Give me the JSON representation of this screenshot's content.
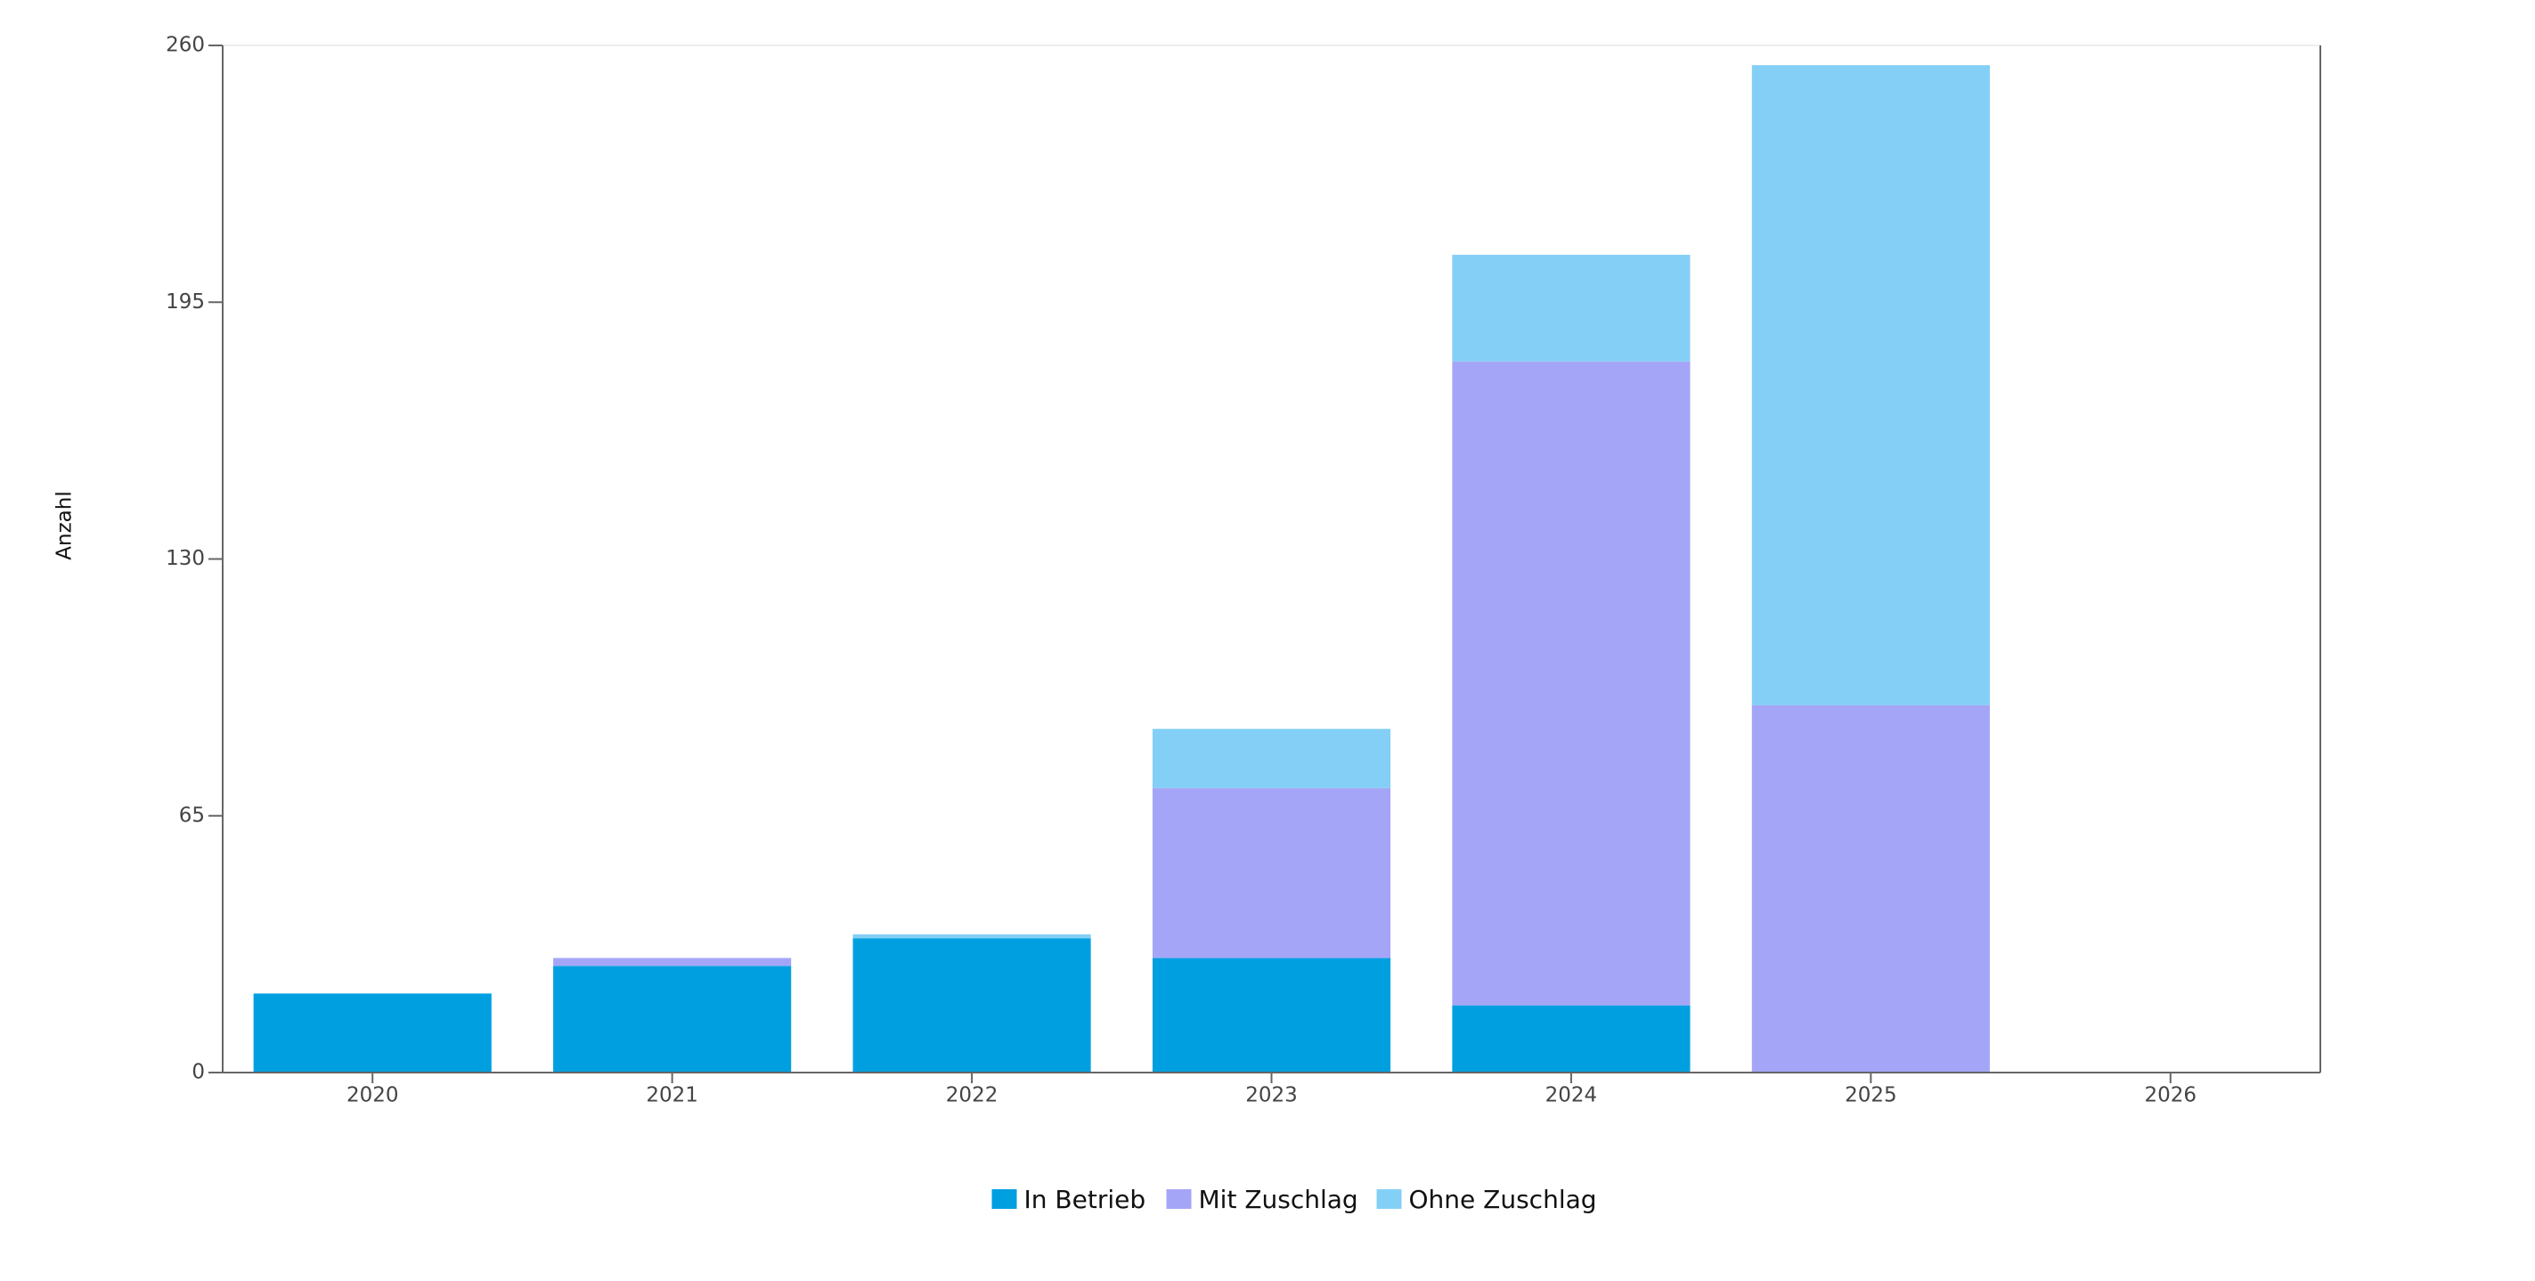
{
  "chart_data": {
    "type": "stacked_bar",
    "y_label": "Anzahl",
    "categories": [
      "2020",
      "2021",
      "2022",
      "2023",
      "2024",
      "2025",
      "2026"
    ],
    "series": [
      {
        "name": "In Betrieb",
        "color": "#009fe0",
        "values": [
          20,
          27,
          34,
          29,
          17,
          0,
          0
        ]
      },
      {
        "name": "Mit Zuschlag",
        "color": "#a5a5f7",
        "values": [
          0,
          2,
          0,
          43,
          163,
          93,
          0
        ]
      },
      {
        "name": "Ohne Zuschlag",
        "color": "#84cff6",
        "values": [
          0,
          0,
          1,
          15,
          27,
          162,
          0
        ]
      }
    ],
    "ylim": [
      0,
      260
    ],
    "yticks": [
      0,
      65,
      130,
      195,
      260
    ]
  }
}
